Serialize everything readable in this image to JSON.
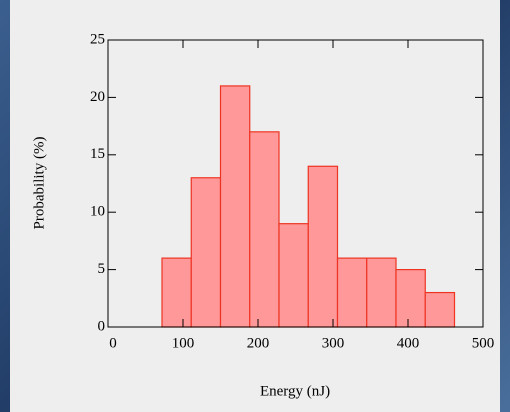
{
  "chart_data": {
    "type": "histogram",
    "xlabel": "Energy (nJ)",
    "ylabel": "Probability (%)",
    "bins": [
      72,
      111,
      150,
      189,
      228,
      267,
      306,
      345,
      384,
      423,
      462
    ],
    "values": [
      6,
      13,
      21,
      17,
      9,
      14,
      6,
      6,
      5,
      3
    ],
    "color": "#ff9999",
    "edgecolor": "#ee3322",
    "xlim": [
      0,
      500
    ],
    "xticks": [
      0,
      100,
      200,
      300,
      400,
      500
    ],
    "ylim": [
      0,
      25
    ],
    "yticks": [
      0,
      5,
      10,
      15,
      20,
      25
    ]
  }
}
